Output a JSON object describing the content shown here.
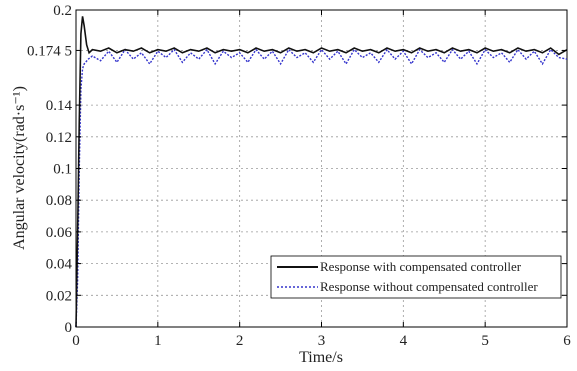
{
  "chart_data": {
    "type": "line",
    "xlabel": "Time/s",
    "ylabel": "Angular velocity(rad·s⁻¹)",
    "xlim": [
      0,
      6
    ],
    "ylim": [
      0,
      0.2
    ],
    "x_ticks": [
      "0",
      "1",
      "2",
      "3",
      "4",
      "5",
      "6"
    ],
    "y_ticks": [
      "0",
      "0.02",
      "0.04",
      "0.06",
      "0.08",
      "0.1",
      "0.12",
      "0.14",
      "0.174 5",
      "0.2"
    ],
    "y_tick_values": [
      0,
      0.02,
      0.04,
      0.06,
      0.08,
      0.1,
      0.12,
      0.14,
      0.1745,
      0.2
    ],
    "grid": true,
    "legend_position": "bottom-right",
    "series": [
      {
        "name": "Response with compensated controller",
        "color": "#111111",
        "style": "solid",
        "x": [
          0,
          0.02,
          0.04,
          0.06,
          0.08,
          0.1,
          0.13,
          0.16,
          0.2,
          0.3,
          0.4,
          0.5,
          0.6,
          0.7,
          0.8,
          0.9,
          1.0,
          1.1,
          1.2,
          1.3,
          1.4,
          1.5,
          1.6,
          1.7,
          1.8,
          1.9,
          2.0,
          2.1,
          2.2,
          2.3,
          2.4,
          2.5,
          2.6,
          2.7,
          2.8,
          2.9,
          3.0,
          3.1,
          3.2,
          3.3,
          3.4,
          3.5,
          3.6,
          3.7,
          3.8,
          3.9,
          4.0,
          4.1,
          4.2,
          4.3,
          4.4,
          4.5,
          4.6,
          4.7,
          4.8,
          4.9,
          5.0,
          5.1,
          5.2,
          5.3,
          5.4,
          5.5,
          5.6,
          5.7,
          5.8,
          5.9,
          6.0
        ],
        "y": [
          0,
          0.06,
          0.13,
          0.185,
          0.196,
          0.19,
          0.178,
          0.173,
          0.175,
          0.174,
          0.176,
          0.173,
          0.175,
          0.174,
          0.176,
          0.173,
          0.175,
          0.174,
          0.176,
          0.173,
          0.175,
          0.174,
          0.176,
          0.173,
          0.175,
          0.174,
          0.175,
          0.173,
          0.176,
          0.174,
          0.175,
          0.173,
          0.176,
          0.174,
          0.175,
          0.173,
          0.176,
          0.174,
          0.175,
          0.173,
          0.176,
          0.174,
          0.175,
          0.173,
          0.176,
          0.174,
          0.175,
          0.173,
          0.176,
          0.174,
          0.175,
          0.173,
          0.176,
          0.174,
          0.175,
          0.173,
          0.176,
          0.174,
          0.175,
          0.173,
          0.176,
          0.174,
          0.175,
          0.173,
          0.176,
          0.172,
          0.175
        ]
      },
      {
        "name": "Response without compensated controller",
        "color": "#3333cc",
        "style": "dotted",
        "x": [
          0,
          0.02,
          0.04,
          0.06,
          0.08,
          0.1,
          0.15,
          0.2,
          0.3,
          0.4,
          0.5,
          0.6,
          0.7,
          0.8,
          0.9,
          1.0,
          1.1,
          1.2,
          1.3,
          1.4,
          1.5,
          1.6,
          1.7,
          1.8,
          1.9,
          2.0,
          2.1,
          2.2,
          2.3,
          2.4,
          2.5,
          2.6,
          2.7,
          2.8,
          2.9,
          3.0,
          3.1,
          3.2,
          3.3,
          3.4,
          3.5,
          3.6,
          3.7,
          3.8,
          3.9,
          4.0,
          4.1,
          4.2,
          4.3,
          4.4,
          4.5,
          4.6,
          4.7,
          4.8,
          4.9,
          5.0,
          5.1,
          5.2,
          5.3,
          5.4,
          5.5,
          5.6,
          5.7,
          5.8,
          5.9,
          6.0
        ],
        "y": [
          0,
          0.03,
          0.1,
          0.15,
          0.163,
          0.166,
          0.169,
          0.171,
          0.168,
          0.174,
          0.167,
          0.175,
          0.169,
          0.173,
          0.166,
          0.174,
          0.17,
          0.175,
          0.167,
          0.173,
          0.169,
          0.175,
          0.166,
          0.174,
          0.17,
          0.173,
          0.167,
          0.175,
          0.169,
          0.174,
          0.166,
          0.175,
          0.17,
          0.173,
          0.167,
          0.175,
          0.169,
          0.174,
          0.166,
          0.175,
          0.17,
          0.173,
          0.167,
          0.175,
          0.169,
          0.174,
          0.166,
          0.175,
          0.17,
          0.173,
          0.167,
          0.175,
          0.169,
          0.174,
          0.166,
          0.175,
          0.17,
          0.173,
          0.167,
          0.175,
          0.169,
          0.174,
          0.166,
          0.175,
          0.17,
          0.169
        ]
      }
    ]
  }
}
